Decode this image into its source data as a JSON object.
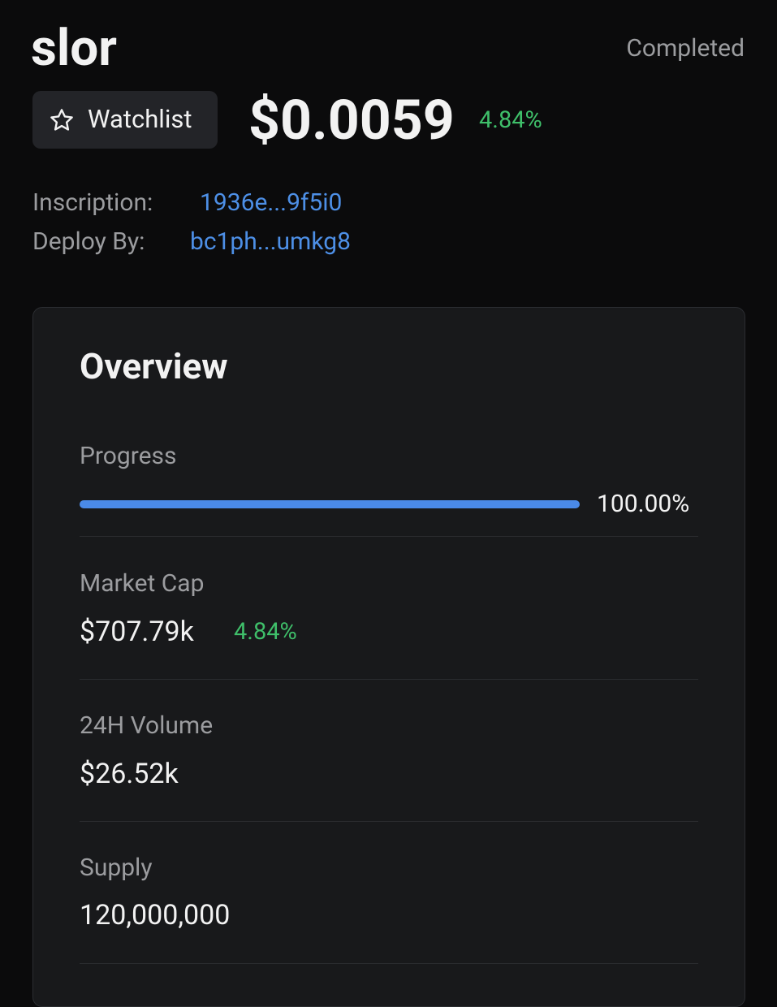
{
  "header": {
    "title": "slor",
    "status": "Completed",
    "watchlist": "Watchlist",
    "price": "$0.0059",
    "price_change": "4.84%"
  },
  "info": [
    {
      "label": "Inscription:",
      "value": "1936e...9f5i0"
    },
    {
      "label": "Deploy By:",
      "value": "bc1ph...umkg8"
    }
  ],
  "overview": {
    "title": "Overview",
    "progress": {
      "label": "Progress",
      "value": 100,
      "value_label": "100.00%"
    },
    "stats": [
      {
        "label": "Market Cap",
        "value": "$707.79k",
        "change": "4.84%"
      },
      {
        "label": "24H Volume",
        "value": "$26.52k"
      },
      {
        "label": "Supply",
        "value": "120,000,000"
      }
    ]
  }
}
